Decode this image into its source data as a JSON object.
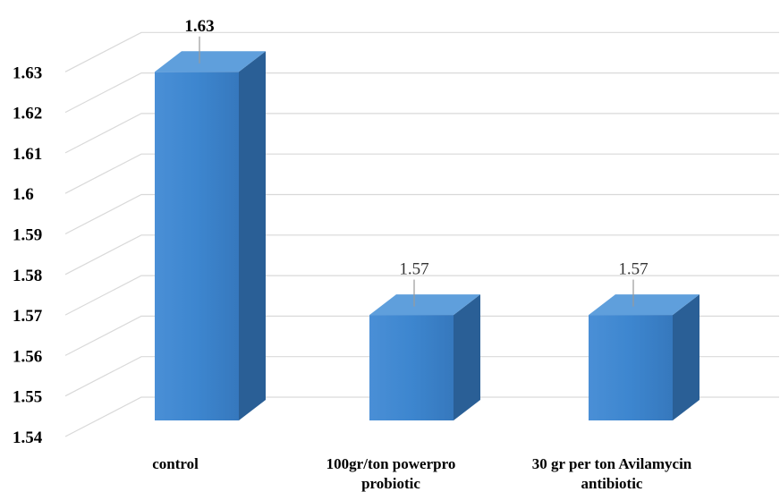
{
  "chart_data": {
    "type": "bar",
    "style": "3d-column",
    "categories": [
      [
        "control"
      ],
      [
        "100gr/ton powerpro",
        "probiotic"
      ],
      [
        "30 gr per ton Avilamycin",
        "antibiotic"
      ]
    ],
    "values": [
      1.63,
      1.57,
      1.57
    ],
    "data_labels": [
      "1.63",
      "1.57",
      "1.57"
    ],
    "yticks": [
      "1.54",
      "1.55",
      "1.56",
      "1.57",
      "1.58",
      "1.59",
      "1.6",
      "1.61",
      "1.62",
      "1.63"
    ],
    "ylim": [
      1.54,
      1.64
    ],
    "grid": true,
    "colors": {
      "front": "#3d86cf",
      "side": "#2a5f96",
      "top": "#5f9fdc",
      "grid": "#d9d9d9"
    }
  }
}
